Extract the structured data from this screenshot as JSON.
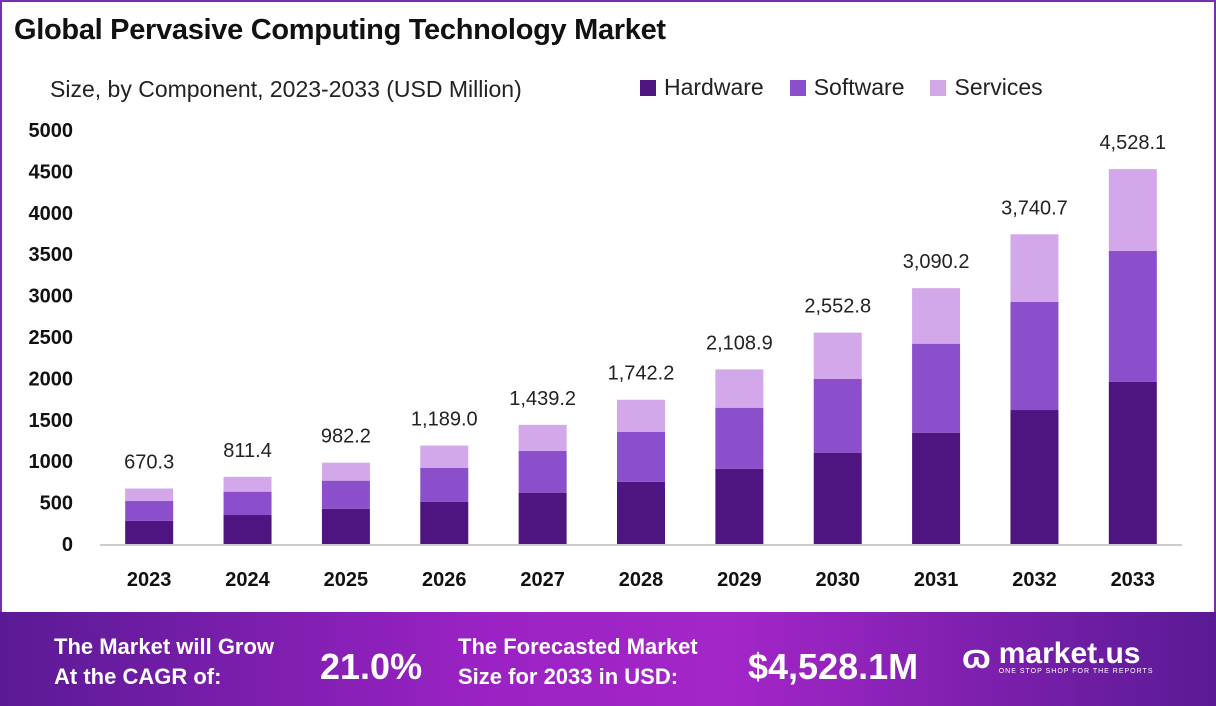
{
  "chart_data": {
    "type": "bar",
    "stacked": true,
    "title": "Global Pervasive Computing Technology Market",
    "subtitle": "Size, by Component, 2023-2033 (USD Million)",
    "categories": [
      "2023",
      "2024",
      "2025",
      "2026",
      "2027",
      "2028",
      "2029",
      "2030",
      "2031",
      "2032",
      "2033"
    ],
    "series": [
      {
        "name": "Hardware",
        "color": "#4e1580",
        "values": [
          281,
          350,
          426,
          511,
          620,
          752,
          909,
          1103,
          1344,
          1618,
          1957
        ]
      },
      {
        "name": "Software",
        "color": "#8b4fcb",
        "values": [
          238,
          282,
          339,
          407,
          503,
          601,
          737,
          890,
          1075,
          1305,
          1582
        ]
      },
      {
        "name": "Services",
        "color": "#d2a8ea",
        "values": [
          151.3,
          179.4,
          217.2,
          271.0,
          316.2,
          389.2,
          462.9,
          559.8,
          671.2,
          817.7,
          989.1
        ]
      }
    ],
    "totals": [
      670.3,
      811.4,
      982.2,
      1189.0,
      1439.2,
      1742.2,
      2108.9,
      2552.8,
      3090.2,
      3740.7,
      4528.1
    ],
    "total_labels": [
      "670.3",
      "811.4",
      "982.2",
      "1,189.0",
      "1,439.2",
      "1,742.2",
      "2,108.9",
      "2,552.8",
      "3,090.2",
      "3,740.7",
      "4,528.1"
    ],
    "yticks": [
      0,
      500,
      1000,
      1500,
      2000,
      2500,
      3000,
      3500,
      4000,
      4500,
      5000
    ],
    "ylim": [
      0,
      5000
    ],
    "grid": false,
    "legend_position": "top-right"
  },
  "banner": {
    "cagr_label_line1": "The Market will Grow",
    "cagr_label_line2": "At the CAGR of:",
    "cagr_value": "21.0%",
    "forecast_label_line1": "The Forecasted Market",
    "forecast_label_line2": "Size for 2033 in USD:",
    "forecast_value": "$4,528.1M",
    "logo_text": "market.us",
    "logo_tagline": "ONE STOP SHOP FOR THE REPORTS"
  }
}
